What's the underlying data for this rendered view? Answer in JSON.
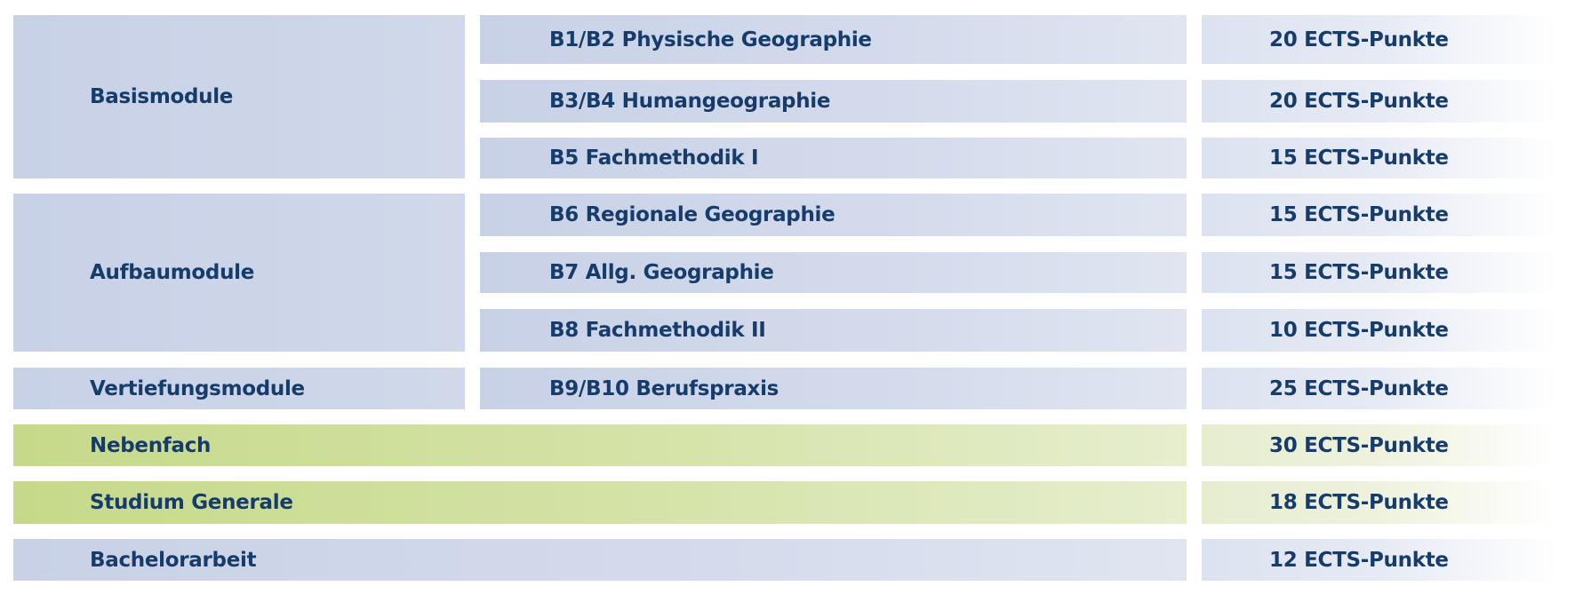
{
  "groups": [
    {
      "label": "Basismodule"
    },
    {
      "label": "Aufbaumodule"
    },
    {
      "label": "Vertiefungsmodule"
    }
  ],
  "modules": [
    {
      "label": "B1/B2 Physische Geographie",
      "points": "20 ECTS-Punkte"
    },
    {
      "label": "B3/B4 Humangeographie",
      "points": "20 ECTS-Punkte"
    },
    {
      "label": "B5 Fachmethodik I",
      "points": "15 ECTS-Punkte"
    },
    {
      "label": "B6 Regionale Geographie",
      "points": "15 ECTS-Punkte"
    },
    {
      "label": "B7 Allg. Geographie",
      "points": "15 ECTS-Punkte"
    },
    {
      "label": "B8 Fachmethodik II",
      "points": "10 ECTS-Punkte"
    },
    {
      "label": "B9/B10 Berufspraxis",
      "points": "25 ECTS-Punkte"
    }
  ],
  "extras": [
    {
      "label": "Nebenfach",
      "points": "30 ECTS-Punkte"
    },
    {
      "label": "Studium Generale",
      "points": "18 ECTS-Punkte"
    },
    {
      "label": "Bachelorarbeit",
      "points": "12 ECTS-Punkte"
    }
  ],
  "colors": {
    "text": "#163c6b",
    "blue": "#c8d1e6",
    "green": "#c6d98a"
  }
}
